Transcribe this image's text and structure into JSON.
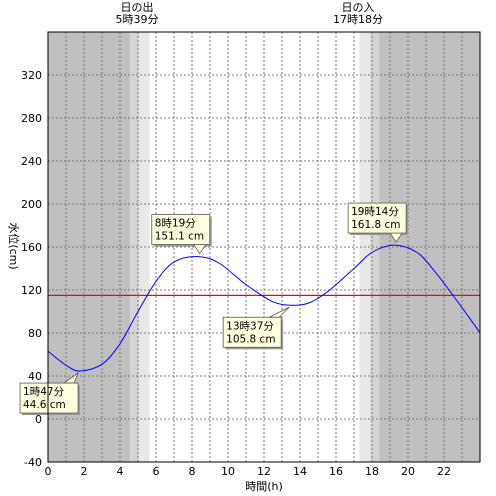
{
  "chart_data": {
    "type": "line",
    "xlabel": "時間(h)",
    "ylabel": "水位(cm)",
    "xlim": [
      0,
      24
    ],
    "ylim": [
      -40,
      360
    ],
    "xticks": [
      0,
      2,
      4,
      6,
      8,
      10,
      12,
      14,
      16,
      18,
      20,
      22
    ],
    "yticks": [
      -40,
      0,
      40,
      80,
      120,
      160,
      200,
      240,
      280,
      320
    ],
    "grid": true,
    "reference_line": {
      "y": 115,
      "color": "#ff0000"
    },
    "sunrise": {
      "label": "日の出",
      "time_label": "5時39分",
      "hour": 5.65
    },
    "sunset": {
      "label": "日の入",
      "time_label": "17時18分",
      "hour": 17.3
    },
    "series": [
      {
        "color": "#0000ff",
        "x": [
          0,
          1,
          1.78,
          3,
          4,
          5,
          6,
          7,
          8.32,
          9.5,
          11,
          12.5,
          13.62,
          14.5,
          15.5,
          17,
          18,
          19.23,
          20.5,
          21.5,
          22.5,
          23.5,
          24
        ],
        "y": [
          63,
          50,
          44.6,
          51,
          70,
          100,
          128,
          146,
          151.1,
          145,
          125,
          109,
          105.8,
          108,
          118,
          140,
          155,
          161.8,
          155,
          137,
          115,
          92,
          80
        ]
      }
    ],
    "annotations": [
      {
        "kind": "low",
        "time": "1時47分",
        "value": "44.6 cm",
        "x": 1.78,
        "y": 44.6
      },
      {
        "kind": "high",
        "time": "8時19分",
        "value": "151.1 cm",
        "x": 8.32,
        "y": 151.1
      },
      {
        "kind": "low",
        "time": "13時37分",
        "value": "105.8 cm",
        "x": 13.62,
        "y": 105.8
      },
      {
        "kind": "high",
        "time": "19時14分",
        "value": "161.8 cm",
        "x": 19.23,
        "y": 161.8
      }
    ],
    "colors": {
      "night": "#bfbfbf",
      "twilight_dark": "#d4d4d4",
      "twilight_light": "#e8e8e8",
      "day": "#ffffff",
      "annotation_fill": "#ffffe0"
    }
  }
}
